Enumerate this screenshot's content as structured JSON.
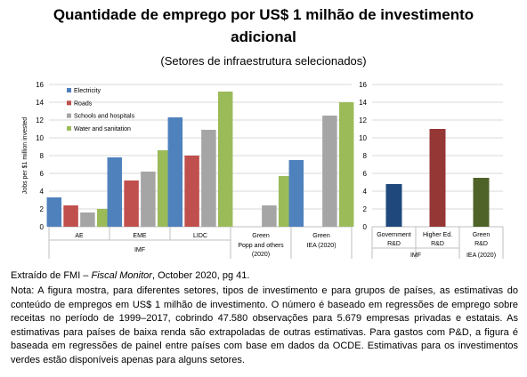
{
  "header": {
    "title_line1": "Quantidade de emprego por US$ 1 milhão de investimento",
    "title_line2": "adicional",
    "subtitle": "(Setores de infraestrutura selecionados)"
  },
  "footer": {
    "source_prefix": "Extraído de FMI – ",
    "source_italic": "Fiscal Monitor",
    "source_suffix": ", October 2020, pg 41.",
    "note": "Nota: A figura mostra, para diferentes setores, tipos de investimento e para grupos de países, as estimativas do conteúdo de empregos em US$ 1 milhão de investimento. O número é baseado em regressões de emprego sobre receitas no período de 1999–2017, cobrindo 47.580 observações para 5.679 empresas privadas e estatais. As estimativas para países de baixa renda são extrapoladas de outras estimativas. Para gastos com P&D, a figura é baseada em regressões de painel entre países com base em dados da OCDE. Estimativas para os investimentos verdes estão disponíveis apenas para alguns setores."
  },
  "chart_data": [
    {
      "type": "bar",
      "ylabel": "Jobs per $1 million invested",
      "ylim": [
        0,
        16
      ],
      "yticks": [
        0,
        2,
        4,
        6,
        8,
        10,
        12,
        14,
        16
      ],
      "legend_position": "top-left",
      "series": [
        {
          "name": "Electricity",
          "color": "#4f81bd"
        },
        {
          "name": "Roads",
          "color": "#c0504d"
        },
        {
          "name": "Schools and hospitals",
          "color": "#a5a5a5"
        },
        {
          "name": "Water and sanitation",
          "color": "#9bbb59"
        }
      ],
      "groups": [
        {
          "label": "AE",
          "values": [
            3.3,
            2.4,
            1.6,
            2.0
          ]
        },
        {
          "label": "EME",
          "values": [
            7.8,
            5.2,
            6.2,
            8.6
          ]
        },
        {
          "label": "LIDC",
          "values": [
            12.3,
            8.0,
            10.9,
            15.2
          ]
        },
        {
          "label": "Green",
          "values": [
            null,
            null,
            2.4,
            5.7
          ]
        },
        {
          "label": "Green",
          "values": [
            7.5,
            null,
            12.5,
            14.0
          ]
        }
      ],
      "group_labels": [
        "IMF",
        "Popp and others (2020)",
        "IEA (2020)"
      ]
    },
    {
      "type": "bar",
      "ylim": [
        0,
        16
      ],
      "yticks": [
        0,
        2,
        4,
        6,
        8,
        10,
        12,
        14,
        16
      ],
      "categories": [
        "Government R&D",
        "Higher Ed. R&D",
        "Green R&D"
      ],
      "category_lines": [
        [
          "Government",
          "R&D"
        ],
        [
          "Higher Ed.",
          "R&D"
        ],
        [
          "Green",
          "R&D"
        ]
      ],
      "values": [
        4.8,
        11.0,
        5.5
      ],
      "colors": [
        "#1f497d",
        "#953735",
        "#4f6228"
      ],
      "group_labels": [
        "IMF",
        "IEA (2020)"
      ]
    }
  ]
}
